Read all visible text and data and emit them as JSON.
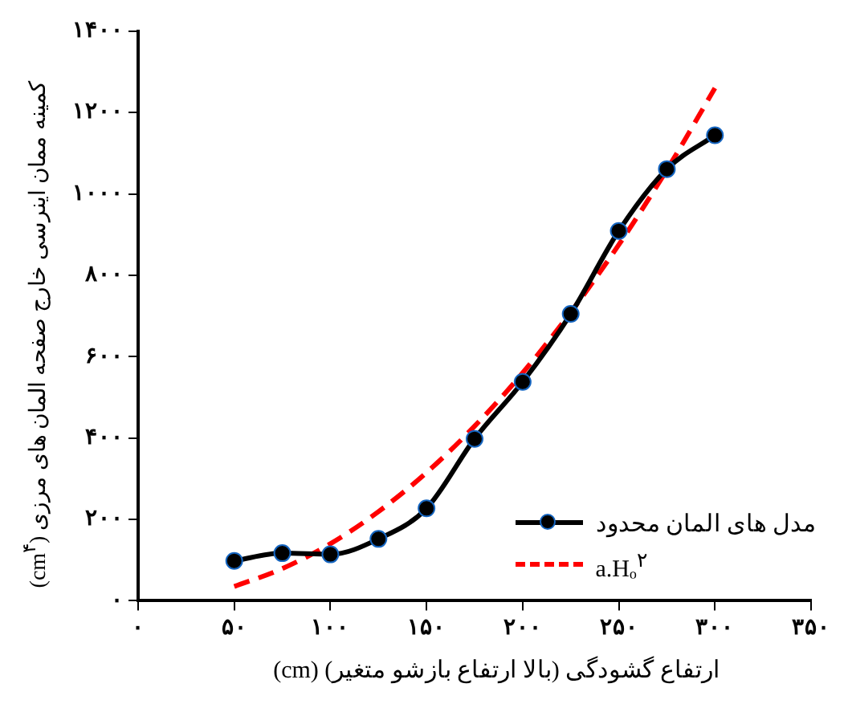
{
  "chart_data": {
    "type": "line",
    "xlabel": "ارتفاع گشودگی (بالا ارتفاع بازشو متغیر) (cm)",
    "ylabel": "کمینه ممان اینرسی خارج صفحه المان های مرزی (cm$^{۴}$)",
    "x": [
      50,
      75,
      100,
      125,
      150,
      175,
      200,
      225,
      250,
      275,
      300
    ],
    "series": [
      {
        "name": "مدل های المان محدود",
        "color": "#000000",
        "values": [
          98,
          117,
          114,
          152,
          227,
          398,
          538,
          705,
          909,
          1061,
          1144
        ],
        "marker": "circle",
        "line_style": "solid"
      },
      {
        "name": "a.Hₒ$^{۲}$",
        "color": "#ff0000",
        "values": [
          35,
          79,
          140,
          219,
          315,
          429,
          560,
          709,
          875,
          1059,
          1260
        ],
        "marker": "none",
        "line_style": "dashed"
      }
    ],
    "xlim": [
      0,
      350
    ],
    "xticks": [
      {
        "value": 0,
        "label": "۰"
      },
      {
        "value": 50,
        "label": "۵۰"
      },
      {
        "value": 100,
        "label": "۱۰۰"
      },
      {
        "value": 150,
        "label": "۱۵۰"
      },
      {
        "value": 200,
        "label": "۲۰۰"
      },
      {
        "value": 250,
        "label": "۲۵۰"
      },
      {
        "value": 300,
        "label": "۳۰۰"
      },
      {
        "value": 350,
        "label": "۳۵۰"
      }
    ],
    "ylim": [
      0,
      1400
    ],
    "yticks": [
      {
        "value": 0,
        "label": "۰"
      },
      {
        "value": 200,
        "label": "۲۰۰"
      },
      {
        "value": 400,
        "label": "۴۰۰"
      },
      {
        "value": 600,
        "label": "۶۰۰"
      },
      {
        "value": 800,
        "label": "۸۰۰"
      },
      {
        "value": 1000,
        "label": "۱۰۰۰"
      },
      {
        "value": 1200,
        "label": "۱۲۰۰"
      },
      {
        "value": 1400,
        "label": "۱۴۰۰"
      }
    ],
    "legend": "bottom right"
  }
}
